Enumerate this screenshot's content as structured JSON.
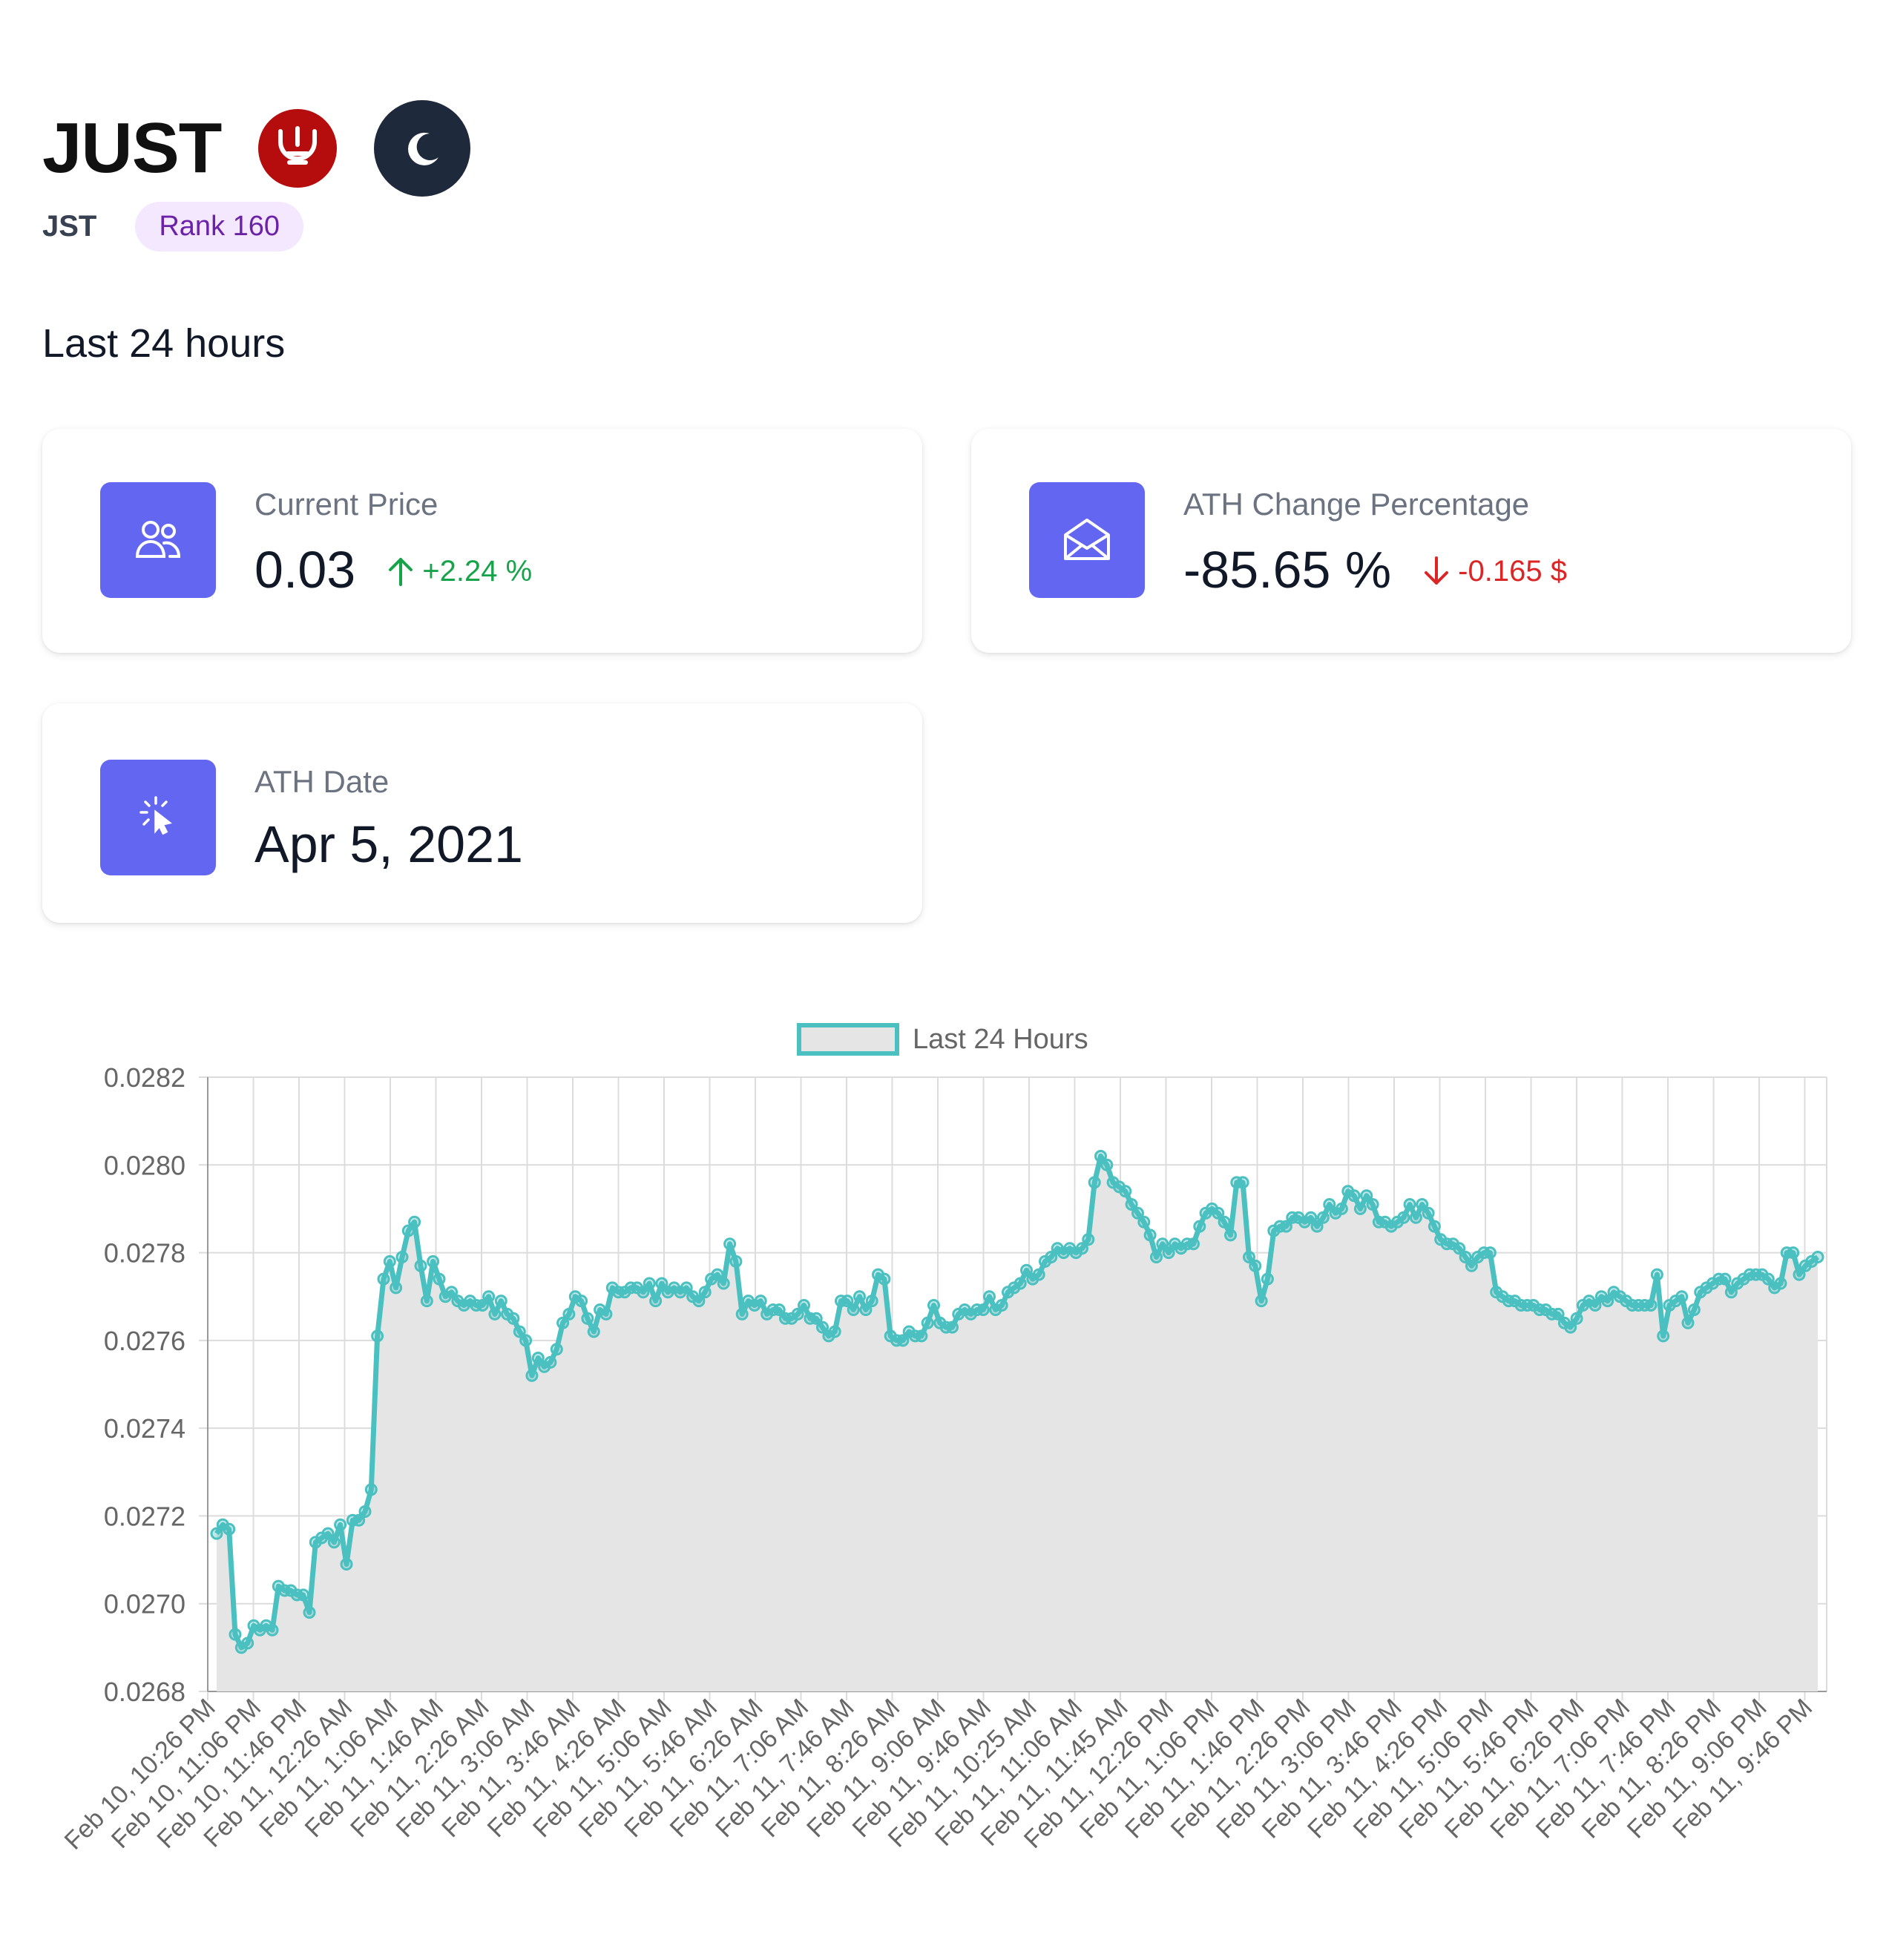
{
  "coin": {
    "name": "JUST",
    "symbol": "JST",
    "rank_label": "Rank 160",
    "logo_icon": "just-logo-icon",
    "logo_color": "#b50d0d",
    "theme_toggle_icon": "moon-icon"
  },
  "section_title": "Last 24 hours",
  "cards": {
    "current_price": {
      "label": "Current Price",
      "value": "0.03",
      "change": "+2.24 %",
      "change_direction": "up",
      "icon": "users-icon"
    },
    "ath_change": {
      "label": "ATH Change Percentage",
      "value": "-85.65 %",
      "change": "-0.165 $",
      "change_direction": "down",
      "icon": "envelope-open-icon"
    },
    "ath_date": {
      "label": "ATH Date",
      "value": "Apr 5, 2021",
      "icon": "cursor-click-icon"
    }
  },
  "colors": {
    "accent": "#6366f1",
    "up": "#16a34a",
    "down": "#dc2626",
    "line": "#4bc0c0",
    "fill": "#e5e5e5"
  },
  "chart_data": {
    "type": "area",
    "legend": "Last 24 Hours",
    "legend_position": "top",
    "grid": true,
    "ylim": [
      0.0268,
      0.0282
    ],
    "y_ticks": [
      0.0268,
      0.027,
      0.0272,
      0.0274,
      0.0276,
      0.0278,
      0.028,
      0.0282
    ],
    "x_tick_labels": [
      "Feb 10, 10:26 PM",
      "Feb 10, 11:06 PM",
      "Feb 10, 11:46 PM",
      "Feb 11, 12:26 AM",
      "Feb 11, 1:06 AM",
      "Feb 11, 1:46 AM",
      "Feb 11, 2:26 AM",
      "Feb 11, 3:06 AM",
      "Feb 11, 3:46 AM",
      "Feb 11, 4:26 AM",
      "Feb 11, 5:06 AM",
      "Feb 11, 5:46 AM",
      "Feb 11, 6:26 AM",
      "Feb 11, 7:06 AM",
      "Feb 11, 7:46 AM",
      "Feb 11, 8:26 AM",
      "Feb 11, 9:06 AM",
      "Feb 11, 9:46 AM",
      "Feb 11, 10:25 AM",
      "Feb 11, 11:06 AM",
      "Feb 11, 11:45 AM",
      "Feb 11, 12:26 PM",
      "Feb 11, 1:06 PM",
      "Feb 11, 1:46 PM",
      "Feb 11, 2:26 PM",
      "Feb 11, 3:06 PM",
      "Feb 11, 3:46 PM",
      "Feb 11, 4:26 PM",
      "Feb 11, 5:06 PM",
      "Feb 11, 5:46 PM",
      "Feb 11, 6:26 PM",
      "Feb 11, 7:06 PM",
      "Feb 11, 7:46 PM",
      "Feb 11, 8:26 PM",
      "Feb 11, 9:06 PM",
      "Feb 11, 9:46 PM"
    ],
    "series": [
      {
        "name": "Last 24 Hours",
        "values": [
          0.02716,
          0.02718,
          0.02717,
          0.02693,
          0.0269,
          0.02691,
          0.02695,
          0.02694,
          0.02695,
          0.02694,
          0.02704,
          0.02703,
          0.02703,
          0.02702,
          0.02702,
          0.02698,
          0.02714,
          0.02715,
          0.02716,
          0.02714,
          0.02718,
          0.02709,
          0.02719,
          0.02719,
          0.02721,
          0.02726,
          0.02761,
          0.02774,
          0.02778,
          0.02772,
          0.02779,
          0.02785,
          0.02787,
          0.02777,
          0.02769,
          0.02778,
          0.02774,
          0.0277,
          0.02771,
          0.02769,
          0.02768,
          0.02769,
          0.02768,
          0.02768,
          0.0277,
          0.02766,
          0.02769,
          0.02766,
          0.02765,
          0.02762,
          0.0276,
          0.02752,
          0.02756,
          0.02754,
          0.02755,
          0.02758,
          0.02764,
          0.02766,
          0.0277,
          0.02769,
          0.02765,
          0.02762,
          0.02767,
          0.02766,
          0.02772,
          0.02771,
          0.02771,
          0.02772,
          0.02772,
          0.02771,
          0.02773,
          0.02769,
          0.02773,
          0.02771,
          0.02772,
          0.02771,
          0.02772,
          0.0277,
          0.02769,
          0.02771,
          0.02774,
          0.02775,
          0.02773,
          0.02782,
          0.02778,
          0.02766,
          0.02769,
          0.02768,
          0.02769,
          0.02766,
          0.02767,
          0.02767,
          0.02765,
          0.02765,
          0.02766,
          0.02768,
          0.02765,
          0.02765,
          0.02763,
          0.02761,
          0.02762,
          0.02769,
          0.02769,
          0.02767,
          0.0277,
          0.02767,
          0.02769,
          0.02775,
          0.02774,
          0.02761,
          0.0276,
          0.0276,
          0.02762,
          0.02761,
          0.02761,
          0.02764,
          0.02768,
          0.02764,
          0.02763,
          0.02763,
          0.02766,
          0.02767,
          0.02766,
          0.02767,
          0.02767,
          0.0277,
          0.02767,
          0.02768,
          0.02771,
          0.02772,
          0.02773,
          0.02776,
          0.02774,
          0.02775,
          0.02778,
          0.02779,
          0.02781,
          0.0278,
          0.02781,
          0.0278,
          0.02781,
          0.02783,
          0.02796,
          0.02802,
          0.028,
          0.02796,
          0.02795,
          0.02794,
          0.02791,
          0.02789,
          0.02787,
          0.02784,
          0.02779,
          0.02782,
          0.0278,
          0.02782,
          0.02781,
          0.02782,
          0.02782,
          0.02786,
          0.02789,
          0.0279,
          0.02789,
          0.02787,
          0.02784,
          0.02796,
          0.02796,
          0.02779,
          0.02777,
          0.02769,
          0.02774,
          0.02785,
          0.02786,
          0.02786,
          0.02788,
          0.02788,
          0.02787,
          0.02788,
          0.02786,
          0.02788,
          0.02791,
          0.02789,
          0.0279,
          0.02794,
          0.02793,
          0.0279,
          0.02793,
          0.02791,
          0.02787,
          0.02787,
          0.02786,
          0.02787,
          0.02788,
          0.02791,
          0.02788,
          0.02791,
          0.02789,
          0.02786,
          0.02783,
          0.02782,
          0.02782,
          0.02781,
          0.02779,
          0.02777,
          0.02779,
          0.0278,
          0.0278,
          0.02771,
          0.0277,
          0.02769,
          0.02769,
          0.02768,
          0.02768,
          0.02768,
          0.02767,
          0.02767,
          0.02766,
          0.02766,
          0.02764,
          0.02763,
          0.02765,
          0.02768,
          0.02769,
          0.02768,
          0.0277,
          0.02769,
          0.02771,
          0.0277,
          0.02769,
          0.02768,
          0.02768,
          0.02768,
          0.02768,
          0.02775,
          0.02761,
          0.02768,
          0.02769,
          0.0277,
          0.02764,
          0.02767,
          0.02771,
          0.02772,
          0.02773,
          0.02774,
          0.02774,
          0.02771,
          0.02773,
          0.02774,
          0.02775,
          0.02775,
          0.02775,
          0.02774,
          0.02772,
          0.02773,
          0.0278,
          0.0278,
          0.02775,
          0.02777,
          0.02778,
          0.02779
        ]
      }
    ]
  }
}
